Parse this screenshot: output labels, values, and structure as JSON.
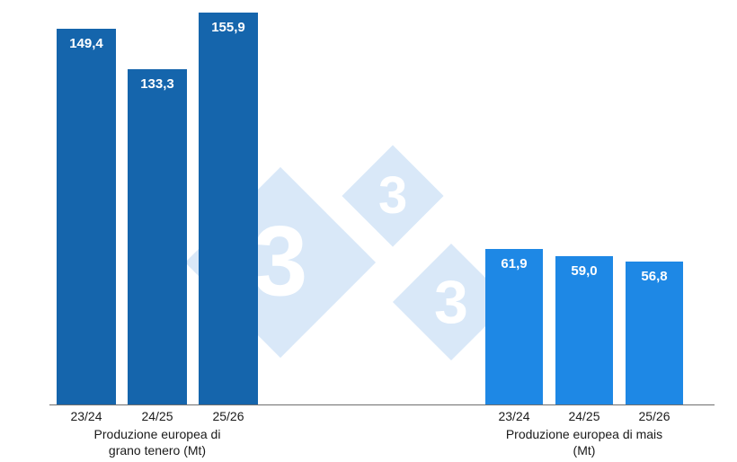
{
  "chart_data": {
    "type": "bar",
    "ylim": [
      0,
      160
    ],
    "grid": false,
    "legend": "none",
    "value_label_color": "#ffffff",
    "axis_color": "#6e6e6e",
    "groups": [
      {
        "id": "grano-tenero",
        "title_lines": [
          "Produzione europea di",
          "grano tenero (Mt)"
        ],
        "color": "#1565ac",
        "categories": [
          "23/24",
          "24/25",
          "25/26"
        ],
        "values": [
          149.4,
          133.3,
          155.9
        ],
        "value_labels": [
          "149,4",
          "133,3",
          "155,9"
        ]
      },
      {
        "id": "mais",
        "title_lines": [
          "Produzione europea di mais",
          "(Mt)"
        ],
        "color": "#1e88e5",
        "categories": [
          "23/24",
          "24/25",
          "25/26"
        ],
        "values": [
          61.9,
          59.0,
          56.8
        ],
        "value_labels": [
          "61,9",
          "59,0",
          "56,8"
        ]
      }
    ],
    "watermark": {
      "digits": [
        "3",
        "3",
        "3"
      ],
      "diamond_color": "#d9e8f8",
      "digit_color": "#ffffff"
    }
  }
}
